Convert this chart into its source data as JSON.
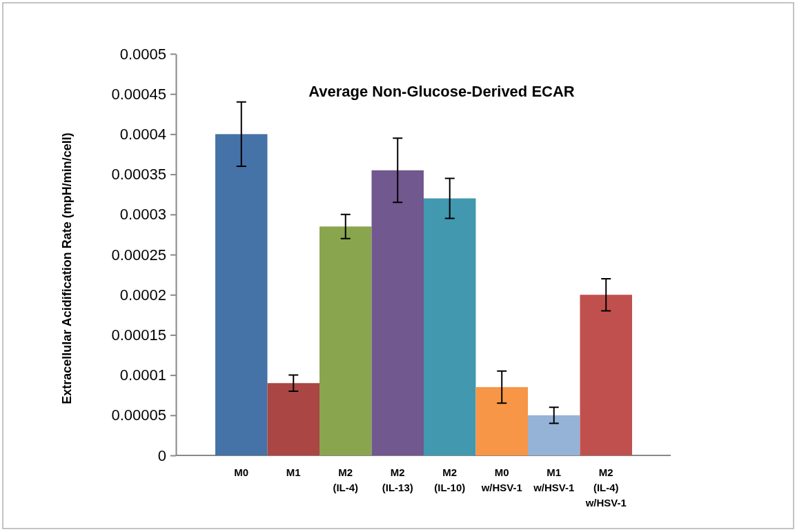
{
  "chart_data": {
    "type": "bar",
    "title": "Average Non-Glucose-Derived ECAR",
    "ylabel": "Extracellular Acidification Rate (mpH/min/cell)",
    "categories": [
      "M0",
      "M1",
      "M2\n(IL-4)",
      "M2\n(IL-13)",
      "M2\n(IL-10)",
      "M0\nw/HSV-1",
      "M1\nw/HSV-1",
      "M2\n(IL-4)\nw/HSV-1"
    ],
    "values": [
      0.0004,
      9e-05,
      0.000285,
      0.000355,
      0.00032,
      8.5e-05,
      5e-05,
      0.0002
    ],
    "errors": [
      4e-05,
      1e-05,
      1.5e-05,
      4e-05,
      2.5e-05,
      2e-05,
      1e-05,
      2e-05
    ],
    "colors": [
      "#4572a7",
      "#aa4643",
      "#89a54e",
      "#71588f",
      "#4198af",
      "#f79646",
      "#95b3d7",
      "#c0504d"
    ],
    "ylim": [
      0,
      0.0005
    ],
    "yticks": [
      0,
      {
        "value": 5e-05,
        "label": "0.00005"
      },
      0.0001,
      0.00015,
      0.0002,
      0.00025,
      0.0003,
      0.00035,
      0.0004,
      0.00045,
      0.0005
    ],
    "grid": false
  }
}
